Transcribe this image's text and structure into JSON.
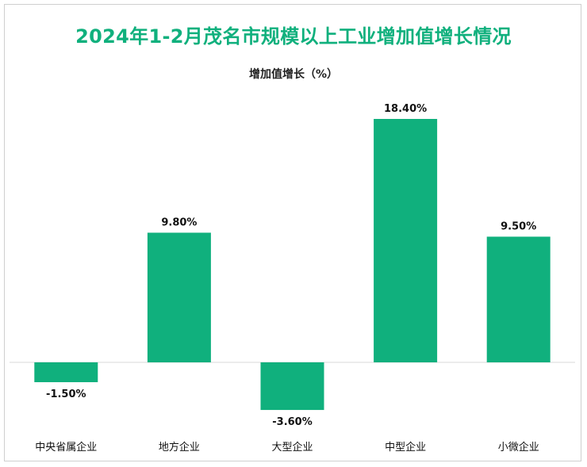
{
  "chart_data": {
    "type": "bar",
    "title": "2024年1-2月茂名市规模以上工业增加值增长情况",
    "series": [
      {
        "name": "增加值增长（%）",
        "values": [
          -1.5,
          9.8,
          -3.6,
          18.4,
          9.5
        ],
        "labels": [
          "-1.50%",
          "9.80%",
          "-3.60%",
          "18.40%",
          "9.50%"
        ]
      }
    ],
    "categories": [
      "中央省属企业",
      "地方企业",
      "大型企业",
      "中型企业",
      "小微企业"
    ],
    "ylim": [
      -3.6,
      18.4
    ],
    "grid": false,
    "legend": "top",
    "colors": {
      "bar": "#10b07d",
      "title": "#10b07d",
      "axis": "#d9d9d9"
    }
  }
}
